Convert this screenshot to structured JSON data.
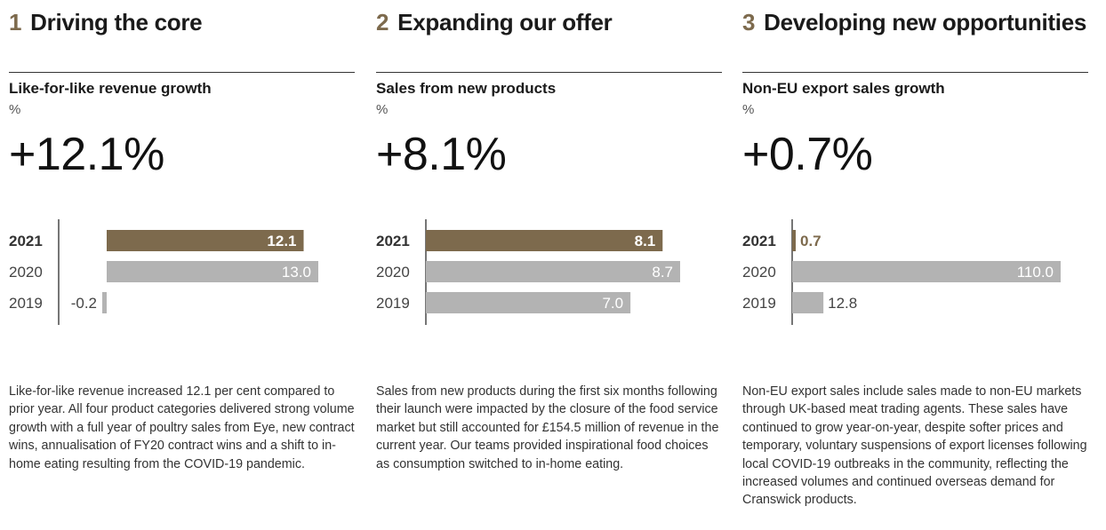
{
  "colors": {
    "accent": "#7d6a4d",
    "bar_grey": "#b3b3b3",
    "axis": "#1a1a1a",
    "text": "#333333"
  },
  "sections": [
    {
      "number": "1",
      "heading": "Driving the core",
      "metric_title": "Like-for-like revenue growth",
      "unit": "%",
      "headline": "+12.1%",
      "description": "Like-for-like revenue increased 12.1 per cent compared to prior year. All four product categories delivered strong volume growth with a full year of poultry sales from Eye, new contract wins, annualisation of FY20 contract wins and a shift to in-home eating resulting from the COVID-19 pandemic."
    },
    {
      "number": "2",
      "heading": "Expanding our offer",
      "metric_title": "Sales from new products",
      "unit": "%",
      "headline": "+8.1%",
      "description": "Sales from new products during the first six months following their launch were impacted by the closure of the food service market but still accounted for £154.5 million of revenue in the current year. Our teams provided inspirational food choices as consumption switched to in-home eating."
    },
    {
      "number": "3",
      "heading": "Developing new opportunities",
      "metric_title": "Non-EU export sales growth",
      "unit": "%",
      "headline": "+0.7%",
      "description": "Non-EU export sales include sales made to non-EU markets through UK-based meat trading agents. These sales have continued to grow year-on-year, despite softer prices and temporary, voluntary suspensions of export licenses following local COVID-19 outbreaks in the community, reflecting the increased volumes and continued overseas demand for Cranswick products."
    }
  ],
  "chart_data": [
    {
      "type": "bar",
      "orientation": "horizontal",
      "title": "Like-for-like revenue growth",
      "unit": "%",
      "categories": [
        "2021",
        "2020",
        "2019"
      ],
      "values": [
        12.1,
        13.0,
        -0.2
      ],
      "labels": [
        "12.1",
        "13.0",
        "-0.2"
      ],
      "highlight": "2021",
      "xlim": [
        -0.2,
        13.0
      ]
    },
    {
      "type": "bar",
      "orientation": "horizontal",
      "title": "Sales from new products",
      "unit": "%",
      "categories": [
        "2021",
        "2020",
        "2019"
      ],
      "values": [
        8.1,
        8.7,
        7.0
      ],
      "labels": [
        "8.1",
        "8.7",
        "7.0"
      ],
      "highlight": "2021",
      "xlim": [
        0,
        8.7
      ]
    },
    {
      "type": "bar",
      "orientation": "horizontal",
      "title": "Non-EU export sales growth",
      "unit": "%",
      "categories": [
        "2021",
        "2020",
        "2019"
      ],
      "values": [
        0.7,
        110.0,
        12.8
      ],
      "labels": [
        "0.7",
        "110.0",
        "12.8"
      ],
      "highlight": "2021",
      "xlim": [
        0,
        110.0
      ]
    }
  ]
}
